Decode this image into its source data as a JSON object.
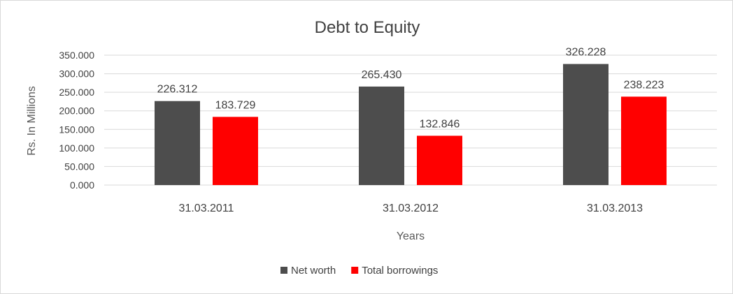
{
  "chart_data": {
    "type": "bar",
    "title": "Debt to Equity",
    "xlabel": "Years",
    "ylabel": "Rs. In Millions",
    "categories": [
      "31.03.2011",
      "31.03.2012",
      "31.03.2013"
    ],
    "series": [
      {
        "name": "Net worth",
        "color": "#4d4d4d",
        "values": [
          226.312,
          265.43,
          326.228
        ]
      },
      {
        "name": "Total borrowings",
        "color": "#ff0000",
        "values": [
          183.729,
          132.846,
          238.223
        ]
      }
    ],
    "data_labels": [
      [
        "226.312",
        "265.430",
        "326.228"
      ],
      [
        "183.729",
        "132.846",
        "238.223"
      ]
    ],
    "yticks": [
      "0.000",
      "50.000",
      "100.000",
      "150.000",
      "200.000",
      "250.000",
      "300.000",
      "350.000"
    ],
    "ylim": [
      0,
      350
    ],
    "grid": true,
    "legend_position": "bottom"
  }
}
